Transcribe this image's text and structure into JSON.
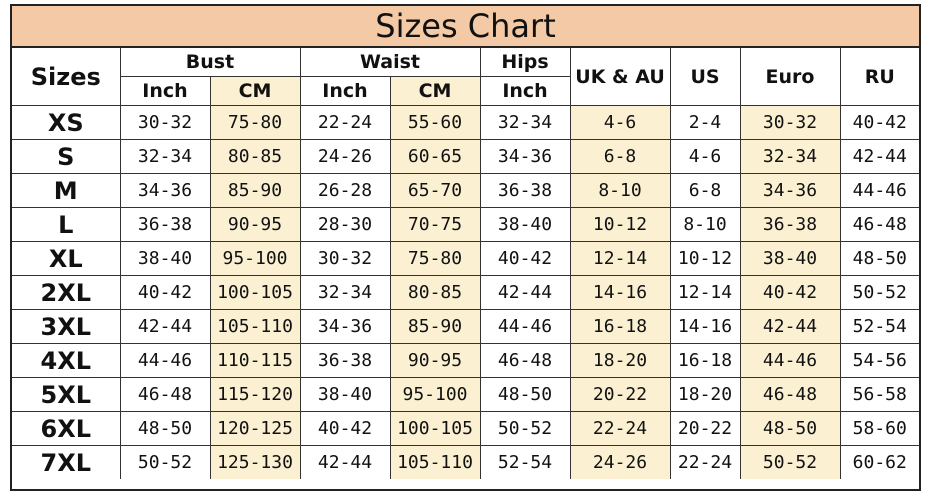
{
  "title": "Sizes Chart",
  "headers": {
    "sizes": "Sizes",
    "bust": "Bust",
    "waist": "Waist",
    "hips": "Hips",
    "uk_au": "UK & AU",
    "us": "US",
    "euro": "Euro",
    "ru": "RU",
    "inch": "Inch",
    "cm": "CM"
  },
  "highlight_color": "#fbf1d2",
  "title_color": "#f3c9a6",
  "rows": [
    {
      "size": "XS",
      "bust_in": "30-32",
      "bust_cm": "75-80",
      "waist_in": "22-24",
      "waist_cm": "55-60",
      "hips_in": "32-34",
      "uk_au": "4-6",
      "us": "2-4",
      "euro": "30-32",
      "ru": "40-42"
    },
    {
      "size": "S",
      "bust_in": "32-34",
      "bust_cm": "80-85",
      "waist_in": "24-26",
      "waist_cm": "60-65",
      "hips_in": "34-36",
      "uk_au": "6-8",
      "us": "4-6",
      "euro": "32-34",
      "ru": "42-44"
    },
    {
      "size": "M",
      "bust_in": "34-36",
      "bust_cm": "85-90",
      "waist_in": "26-28",
      "waist_cm": "65-70",
      "hips_in": "36-38",
      "uk_au": "8-10",
      "us": "6-8",
      "euro": "34-36",
      "ru": "44-46"
    },
    {
      "size": "L",
      "bust_in": "36-38",
      "bust_cm": "90-95",
      "waist_in": "28-30",
      "waist_cm": "70-75",
      "hips_in": "38-40",
      "uk_au": "10-12",
      "us": "8-10",
      "euro": "36-38",
      "ru": "46-48"
    },
    {
      "size": "XL",
      "bust_in": "38-40",
      "bust_cm": "95-100",
      "waist_in": "30-32",
      "waist_cm": "75-80",
      "hips_in": "40-42",
      "uk_au": "12-14",
      "us": "10-12",
      "euro": "38-40",
      "ru": "48-50"
    },
    {
      "size": "2XL",
      "bust_in": "40-42",
      "bust_cm": "100-105",
      "waist_in": "32-34",
      "waist_cm": "80-85",
      "hips_in": "42-44",
      "uk_au": "14-16",
      "us": "12-14",
      "euro": "40-42",
      "ru": "50-52"
    },
    {
      "size": "3XL",
      "bust_in": "42-44",
      "bust_cm": "105-110",
      "waist_in": "34-36",
      "waist_cm": "85-90",
      "hips_in": "44-46",
      "uk_au": "16-18",
      "us": "14-16",
      "euro": "42-44",
      "ru": "52-54"
    },
    {
      "size": "4XL",
      "bust_in": "44-46",
      "bust_cm": "110-115",
      "waist_in": "36-38",
      "waist_cm": "90-95",
      "hips_in": "46-48",
      "uk_au": "18-20",
      "us": "16-18",
      "euro": "44-46",
      "ru": "54-56"
    },
    {
      "size": "5XL",
      "bust_in": "46-48",
      "bust_cm": "115-120",
      "waist_in": "38-40",
      "waist_cm": "95-100",
      "hips_in": "48-50",
      "uk_au": "20-22",
      "us": "18-20",
      "euro": "46-48",
      "ru": "56-58"
    },
    {
      "size": "6XL",
      "bust_in": "48-50",
      "bust_cm": "120-125",
      "waist_in": "40-42",
      "waist_cm": "100-105",
      "hips_in": "50-52",
      "uk_au": "22-24",
      "us": "20-22",
      "euro": "48-50",
      "ru": "58-60"
    },
    {
      "size": "7XL",
      "bust_in": "50-52",
      "bust_cm": "125-130",
      "waist_in": "42-44",
      "waist_cm": "105-110",
      "hips_in": "52-54",
      "uk_au": "24-26",
      "us": "22-24",
      "euro": "50-52",
      "ru": "60-62"
    }
  ]
}
